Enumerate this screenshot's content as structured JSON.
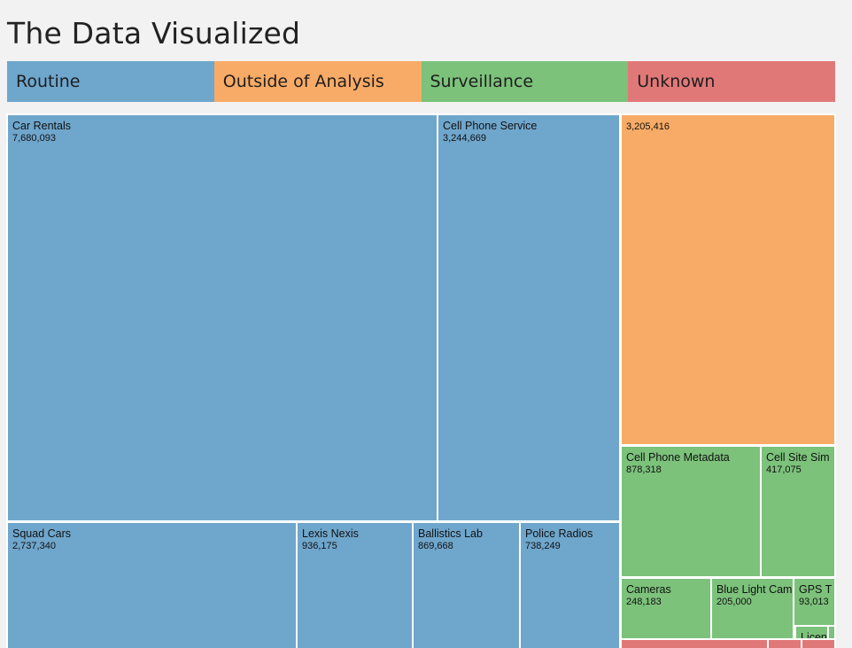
{
  "page": {
    "title": "The Data Visualized"
  },
  "legend": [
    {
      "key": "routine",
      "label": "Routine",
      "color": "#6fa6cc"
    },
    {
      "key": "outside",
      "label": "Outside of Analysis",
      "color": "#f8ab66"
    },
    {
      "key": "surveillance",
      "label": "Surveillance",
      "color": "#7cc27b"
    },
    {
      "key": "unknown",
      "label": "Unknown",
      "color": "#e17878"
    }
  ],
  "chart_data": {
    "type": "treemap",
    "cells": [
      {
        "name": "Car Rentals",
        "value": "7,680,093",
        "category": "routine"
      },
      {
        "name": "Cell Phone Service",
        "value": "3,244,669",
        "category": "routine"
      },
      {
        "name": "Squad Cars",
        "value": "2,737,340",
        "category": "routine"
      },
      {
        "name": "Lexis Nexis",
        "value": "936,175",
        "category": "routine"
      },
      {
        "name": "Ballistics Lab",
        "value": "869,668",
        "category": "routine"
      },
      {
        "name": "Police Radios",
        "value": "738,249",
        "category": "routine"
      },
      {
        "name": "",
        "value": "3,205,416",
        "category": "outside"
      },
      {
        "name": "Cell Phone Metadata",
        "value": "878,318",
        "category": "surveillance"
      },
      {
        "name": "Cell Site Sim",
        "value": "417,075",
        "category": "surveillance"
      },
      {
        "name": "Cameras",
        "value": "248,183",
        "category": "surveillance"
      },
      {
        "name": "Blue Light Cam",
        "value": "205,000",
        "category": "surveillance"
      },
      {
        "name": "GPS T",
        "value": "93,013",
        "category": "surveillance"
      },
      {
        "name": "Licen",
        "value": "",
        "category": "surveillance"
      },
      {
        "name": "",
        "value": "",
        "category": "surveillance"
      },
      {
        "name": "",
        "value": "",
        "category": "surveillance"
      },
      {
        "name": "",
        "value": "",
        "category": "unknown"
      },
      {
        "name": "",
        "value": "",
        "category": "unknown"
      },
      {
        "name": "",
        "value": "",
        "category": "unknown"
      }
    ]
  }
}
